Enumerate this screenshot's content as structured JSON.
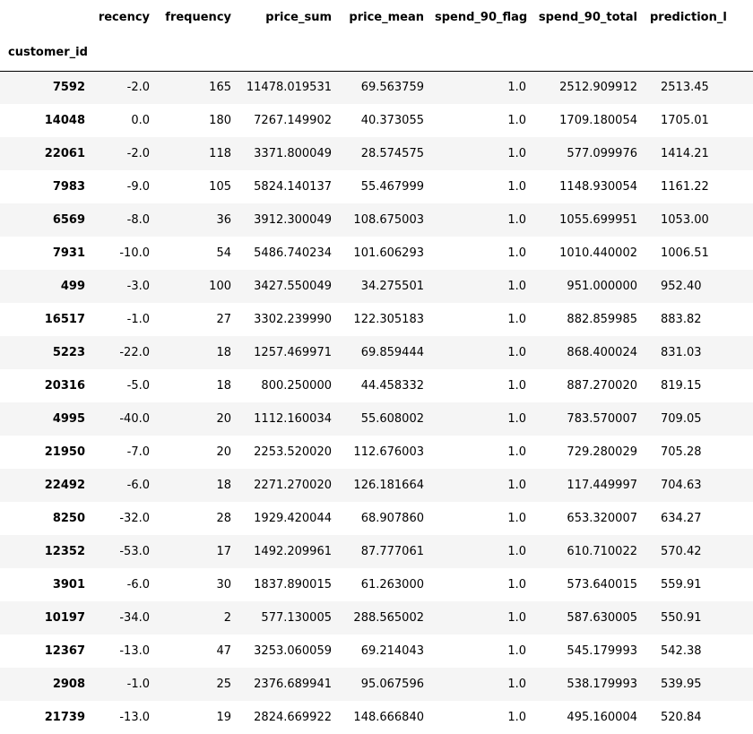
{
  "table": {
    "index_name": "customer_id",
    "columns": [
      "recency",
      "frequency",
      "price_sum",
      "price_mean",
      "spend_90_flag",
      "spend_90_total",
      "prediction_l"
    ],
    "rows": [
      {
        "id": "7592",
        "cells": [
          "-2.0",
          "165",
          "11478.019531",
          "69.563759",
          "1.0",
          "2512.909912",
          "2513.45"
        ]
      },
      {
        "id": "14048",
        "cells": [
          "0.0",
          "180",
          "7267.149902",
          "40.373055",
          "1.0",
          "1709.180054",
          "1705.01"
        ]
      },
      {
        "id": "22061",
        "cells": [
          "-2.0",
          "118",
          "3371.800049",
          "28.574575",
          "1.0",
          "577.099976",
          "1414.21"
        ]
      },
      {
        "id": "7983",
        "cells": [
          "-9.0",
          "105",
          "5824.140137",
          "55.467999",
          "1.0",
          "1148.930054",
          "1161.22"
        ]
      },
      {
        "id": "6569",
        "cells": [
          "-8.0",
          "36",
          "3912.300049",
          "108.675003",
          "1.0",
          "1055.699951",
          "1053.00"
        ]
      },
      {
        "id": "7931",
        "cells": [
          "-10.0",
          "54",
          "5486.740234",
          "101.606293",
          "1.0",
          "1010.440002",
          "1006.51"
        ]
      },
      {
        "id": "499",
        "cells": [
          "-3.0",
          "100",
          "3427.550049",
          "34.275501",
          "1.0",
          "951.000000",
          "952.40"
        ]
      },
      {
        "id": "16517",
        "cells": [
          "-1.0",
          "27",
          "3302.239990",
          "122.305183",
          "1.0",
          "882.859985",
          "883.82"
        ]
      },
      {
        "id": "5223",
        "cells": [
          "-22.0",
          "18",
          "1257.469971",
          "69.859444",
          "1.0",
          "868.400024",
          "831.03"
        ]
      },
      {
        "id": "20316",
        "cells": [
          "-5.0",
          "18",
          "800.250000",
          "44.458332",
          "1.0",
          "887.270020",
          "819.15"
        ]
      },
      {
        "id": "4995",
        "cells": [
          "-40.0",
          "20",
          "1112.160034",
          "55.608002",
          "1.0",
          "783.570007",
          "709.05"
        ]
      },
      {
        "id": "21950",
        "cells": [
          "-7.0",
          "20",
          "2253.520020",
          "112.676003",
          "1.0",
          "729.280029",
          "705.28"
        ]
      },
      {
        "id": "22492",
        "cells": [
          "-6.0",
          "18",
          "2271.270020",
          "126.181664",
          "1.0",
          "117.449997",
          "704.63"
        ]
      },
      {
        "id": "8250",
        "cells": [
          "-32.0",
          "28",
          "1929.420044",
          "68.907860",
          "1.0",
          "653.320007",
          "634.27"
        ]
      },
      {
        "id": "12352",
        "cells": [
          "-53.0",
          "17",
          "1492.209961",
          "87.777061",
          "1.0",
          "610.710022",
          "570.42"
        ]
      },
      {
        "id": "3901",
        "cells": [
          "-6.0",
          "30",
          "1837.890015",
          "61.263000",
          "1.0",
          "573.640015",
          "559.91"
        ]
      },
      {
        "id": "10197",
        "cells": [
          "-34.0",
          "2",
          "577.130005",
          "288.565002",
          "1.0",
          "587.630005",
          "550.91"
        ]
      },
      {
        "id": "12367",
        "cells": [
          "-13.0",
          "47",
          "3253.060059",
          "69.214043",
          "1.0",
          "545.179993",
          "542.38"
        ]
      },
      {
        "id": "2908",
        "cells": [
          "-1.0",
          "25",
          "2376.689941",
          "95.067596",
          "1.0",
          "538.179993",
          "539.95"
        ]
      },
      {
        "id": "21739",
        "cells": [
          "-13.0",
          "19",
          "2824.669922",
          "148.666840",
          "1.0",
          "495.160004",
          "520.84"
        ]
      }
    ]
  }
}
